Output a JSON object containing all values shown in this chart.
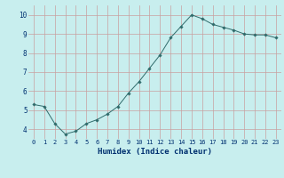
{
  "x": [
    0,
    1,
    2,
    3,
    4,
    5,
    6,
    7,
    8,
    9,
    10,
    11,
    12,
    13,
    14,
    15,
    16,
    17,
    18,
    19,
    20,
    21,
    22,
    23
  ],
  "y": [
    5.3,
    5.2,
    4.3,
    3.75,
    3.9,
    4.3,
    4.5,
    4.8,
    5.2,
    5.9,
    6.5,
    7.2,
    7.9,
    8.8,
    9.4,
    10.0,
    9.8,
    9.5,
    9.35,
    9.2,
    9.0,
    8.95,
    8.95,
    8.8
  ],
  "xlabel": "Humidex (Indice chaleur)",
  "ylim": [
    3.5,
    10.5
  ],
  "xlim": [
    -0.5,
    23.5
  ],
  "bg_color": "#c8eeee",
  "grid_color": "#c8a0a0",
  "line_color": "#2f6b6b",
  "marker_color": "#2f6b6b",
  "xlabel_color": "#003070",
  "tick_color": "#003070",
  "label_fontsize": 6.5,
  "tick_fontsize": 5,
  "yticks": [
    4,
    5,
    6,
    7,
    8,
    9,
    10
  ]
}
